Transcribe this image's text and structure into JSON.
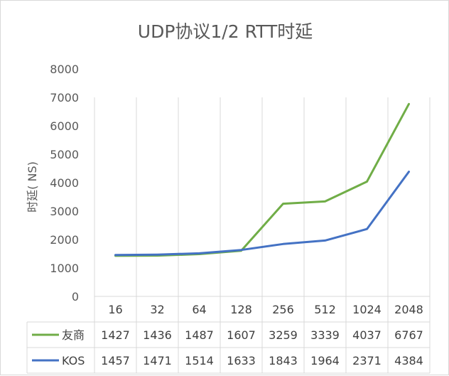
{
  "chart_data": {
    "type": "line",
    "title": "UDP协议1/2  RTT时延",
    "ylabel": "时延( NS)",
    "xlabel": "",
    "ylim": [
      0,
      8000
    ],
    "yticks": [
      0,
      1000,
      2000,
      3000,
      4000,
      5000,
      6000,
      7000,
      8000
    ],
    "categories": [
      "16",
      "32",
      "64",
      "128",
      "256",
      "512",
      "1024",
      "2048"
    ],
    "legend": "data-table",
    "grid": "vertical",
    "series": [
      {
        "name": "友商",
        "color": "#70AD47",
        "values": [
          1427,
          1436,
          1487,
          1607,
          3259,
          3339,
          4037,
          6767
        ]
      },
      {
        "name": "KOS",
        "color": "#4472C4",
        "values": [
          1457,
          1471,
          1514,
          1633,
          1843,
          1964,
          2371,
          4384
        ]
      }
    ]
  }
}
